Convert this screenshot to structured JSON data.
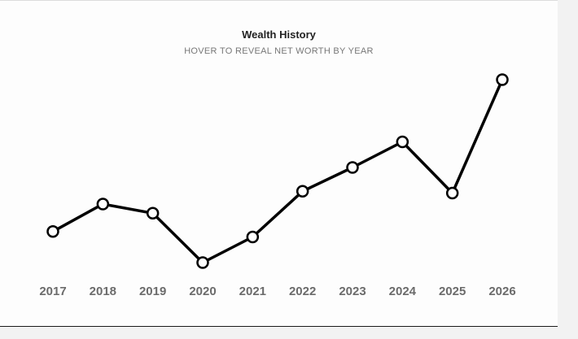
{
  "chart_data": {
    "type": "line",
    "title": "Wealth History",
    "subtitle": "HOVER TO REVEAL NET WORTH BY YEAR",
    "categories": [
      "2017",
      "2018",
      "2019",
      "2020",
      "2021",
      "2022",
      "2023",
      "2024",
      "2025",
      "2026"
    ],
    "values": [
      0.17,
      0.32,
      0.27,
      0.0,
      0.14,
      0.39,
      0.52,
      0.66,
      0.38,
      1.0
    ],
    "ylim": [
      0,
      1
    ],
    "grid": false,
    "line_color": "#000000",
    "marker_fill": "#ffffff",
    "tick_color": "#6b6b6b"
  }
}
